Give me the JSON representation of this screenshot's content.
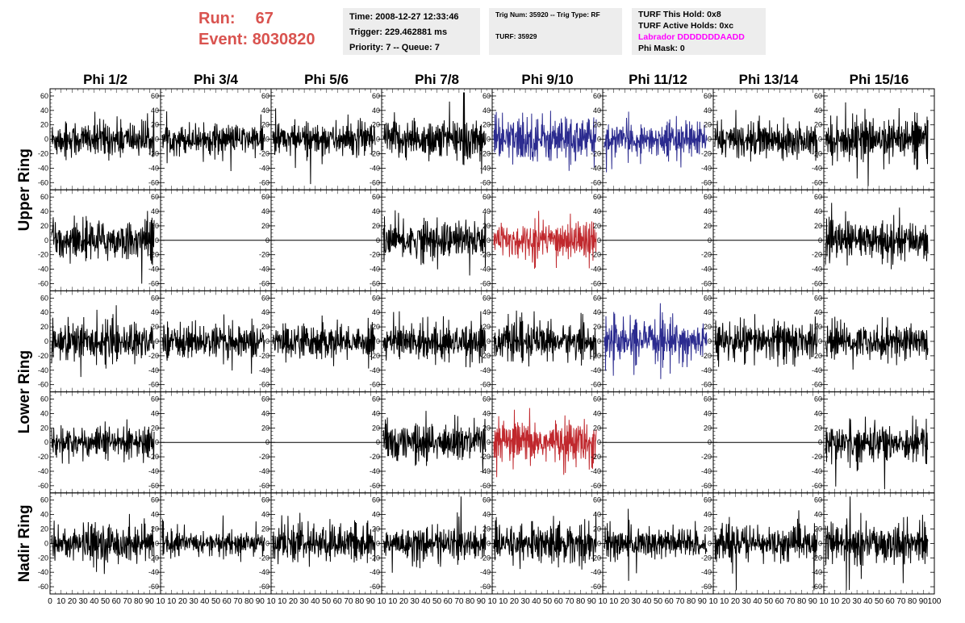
{
  "header": {
    "run_label": "Run:",
    "run_value": "67",
    "event_label": "Event:",
    "event_value": "8030820",
    "time": "Time: 2008-12-27 12:33:46",
    "trigger": "Trigger: 229.462881 ms",
    "priority": "Priority: 7 -- Queue: 7",
    "trig_num": "Trig Num: 35920 -- Trig Type: RF",
    "turf": "TURF: 35929",
    "turf_this_hold": "TURF This Hold: 0x8",
    "turf_active_holds": "TURF Active Holds: 0xc",
    "labrador": "Labrador DDDDDDDAADD",
    "phi_mask": "Phi Mask: 0",
    "labrador_color": "#ff00ff",
    "run_color": "#d9534f"
  },
  "chart_data": {
    "type": "line",
    "columns": [
      "Phi 1/2",
      "Phi 3/4",
      "Phi 5/6",
      "Phi 7/8",
      "Phi 9/10",
      "Phi 11/12",
      "Phi 13/14",
      "Phi 15/16"
    ],
    "rows": [
      "Upper Ring",
      "Lower Ring",
      "Nadir Ring"
    ],
    "ylim": [
      -70,
      70
    ],
    "y_ticks": [
      -60,
      -40,
      -20,
      0,
      20,
      40,
      60
    ],
    "y_tick_labels": [
      "-60",
      "-40",
      "-20",
      "0",
      "20",
      "40",
      "60"
    ],
    "xlim": [
      0,
      100
    ],
    "x_tick_labels": [
      "0",
      "10",
      "20",
      "30",
      "40",
      "50",
      "60",
      "70",
      "80",
      "90",
      "100"
    ],
    "x_tick_labels_compact": [
      "10",
      "20",
      "30",
      "40",
      "50",
      "60",
      "70",
      "80",
      "90",
      "10"
    ],
    "x_tick_labels_first": [
      "0",
      "10",
      "20",
      "30",
      "40",
      "50",
      "60",
      "70",
      "80",
      "90",
      "10"
    ],
    "x_tick_labels_last": [
      "10",
      "20",
      "30",
      "40",
      "50",
      "60",
      "70",
      "80",
      "90",
      "100"
    ],
    "colors": {
      "normal": "#000000",
      "blue": "#2b2b8f",
      "red": "#c0282d"
    },
    "panels": [
      [
        {
          "color": "normal",
          "amp": 14,
          "flat": false
        },
        {
          "color": "normal",
          "amp": 11,
          "flat": false
        },
        {
          "color": "normal",
          "amp": 13,
          "flat": false
        },
        {
          "color": "normal",
          "amp": 16,
          "flat": false
        },
        {
          "color": "blue",
          "amp": 18,
          "flat": false
        },
        {
          "color": "blue",
          "amp": 12,
          "flat": false
        },
        {
          "color": "normal",
          "amp": 13,
          "flat": false
        },
        {
          "color": "normal",
          "amp": 15,
          "flat": false
        }
      ],
      [
        {
          "color": "normal",
          "amp": 15,
          "flat": false
        },
        {
          "color": "normal",
          "amp": 0,
          "flat": true
        },
        {
          "color": "normal",
          "amp": 0,
          "flat": true
        },
        {
          "color": "normal",
          "amp": 15,
          "flat": false
        },
        {
          "color": "red",
          "amp": 15,
          "flat": false
        },
        {
          "color": "normal",
          "amp": 0,
          "flat": true
        },
        {
          "color": "normal",
          "amp": 0,
          "flat": true
        },
        {
          "color": "normal",
          "amp": 14,
          "flat": false
        }
      ],
      [
        {
          "color": "normal",
          "amp": 15,
          "flat": false
        },
        {
          "color": "normal",
          "amp": 12,
          "flat": false
        },
        {
          "color": "normal",
          "amp": 13,
          "flat": false
        },
        {
          "color": "normal",
          "amp": 14,
          "flat": false
        },
        {
          "color": "normal",
          "amp": 14,
          "flat": false
        },
        {
          "color": "blue",
          "amp": 15,
          "flat": false
        },
        {
          "color": "normal",
          "amp": 15,
          "flat": false
        },
        {
          "color": "normal",
          "amp": 13,
          "flat": false
        }
      ],
      [
        {
          "color": "normal",
          "amp": 12,
          "flat": false
        },
        {
          "color": "normal",
          "amp": 0,
          "flat": true
        },
        {
          "color": "normal",
          "amp": 0,
          "flat": true
        },
        {
          "color": "normal",
          "amp": 15,
          "flat": false
        },
        {
          "color": "red",
          "amp": 16,
          "flat": false
        },
        {
          "color": "normal",
          "amp": 0,
          "flat": true
        },
        {
          "color": "normal",
          "amp": 0,
          "flat": true
        },
        {
          "color": "normal",
          "amp": 15,
          "flat": false
        }
      ],
      [
        {
          "color": "normal",
          "amp": 15,
          "flat": false
        },
        {
          "color": "normal",
          "amp": 9,
          "flat": false
        },
        {
          "color": "normal",
          "amp": 14,
          "flat": false
        },
        {
          "color": "normal",
          "amp": 13,
          "flat": false
        },
        {
          "color": "normal",
          "amp": 15,
          "flat": false
        },
        {
          "color": "normal",
          "amp": 14,
          "flat": false
        },
        {
          "color": "normal",
          "amp": 13,
          "flat": false
        },
        {
          "color": "normal",
          "amp": 15,
          "flat": false
        }
      ]
    ]
  }
}
